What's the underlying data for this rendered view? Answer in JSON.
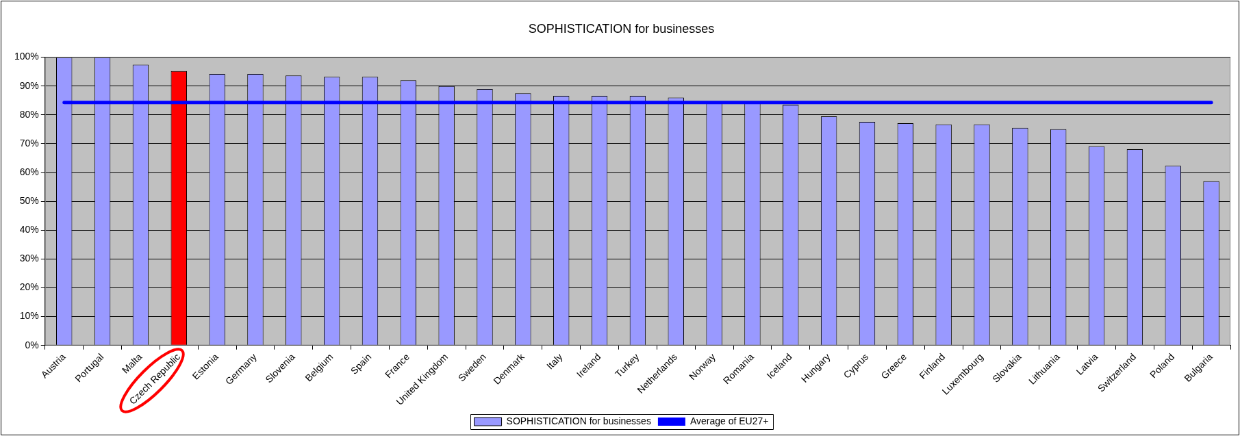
{
  "chart_data": {
    "type": "bar",
    "title": "SOPHISTICATION for businesses",
    "categories": [
      "Austria",
      "Portugal",
      "Malta",
      "Czech Republic",
      "Estonia",
      "Germany",
      "Slovenia",
      "Belgium",
      "Spain",
      "France",
      "United Kingdom",
      "Sweden",
      "Denmark",
      "Italy",
      "Ireland",
      "Turkey",
      "Netherlands",
      "Norway",
      "Romania",
      "Iceland",
      "Hungary",
      "Cyprus",
      "Greece",
      "Finland",
      "Luxembourg",
      "Slovakia",
      "Lithuania",
      "Latvia",
      "Switzerland",
      "Poland",
      "Bulgaria"
    ],
    "series": [
      {
        "name": "SOPHISTICATION for businesses",
        "color": "#9999ff",
        "colors": [
          "#9999ff",
          "#9999ff",
          "#9999ff",
          "#ff0000",
          "#9999ff",
          "#9999ff",
          "#9999ff",
          "#9999ff",
          "#9999ff",
          "#9999ff",
          "#9999ff",
          "#9999ff",
          "#9999ff",
          "#9999ff",
          "#9999ff",
          "#9999ff",
          "#9999ff",
          "#9999ff",
          "#9999ff",
          "#9999ff",
          "#9999ff",
          "#9999ff",
          "#9999ff",
          "#9999ff",
          "#9999ff",
          "#9999ff",
          "#9999ff",
          "#9999ff",
          "#9999ff",
          "#9999ff",
          "#9999ff"
        ],
        "values": [
          100,
          100,
          97.4,
          95.2,
          94.2,
          94.2,
          93.7,
          93.2,
          93.2,
          92,
          90,
          89,
          87.5,
          86.6,
          86.6,
          86.6,
          86,
          84,
          84,
          83.5,
          79.5,
          77.6,
          77.1,
          76.7,
          76.7,
          75.5,
          75,
          69.1,
          68.1,
          62.3,
          57
        ]
      },
      {
        "name": "Average of EU27+",
        "type": "line",
        "color": "#0000ff",
        "values": [
          84.3,
          84.3,
          84.3,
          84.3,
          84.3,
          84.3,
          84.3,
          84.3,
          84.3,
          84.3,
          84.3,
          84.3,
          84.3,
          84.3,
          84.3,
          84.3,
          84.3,
          84.3,
          84.3,
          84.3,
          84.3,
          84.3,
          84.3,
          84.3,
          84.3,
          84.3,
          84.3,
          84.3,
          84.3,
          84.3,
          84.3
        ]
      }
    ],
    "ylim": [
      0,
      100
    ],
    "yticks": [
      {
        "value": 0,
        "label": "0%"
      },
      {
        "value": 10,
        "label": "10%"
      },
      {
        "value": 20,
        "label": "20%"
      },
      {
        "value": 30,
        "label": "30%"
      },
      {
        "value": 40,
        "label": "40%"
      },
      {
        "value": 50,
        "label": "50%"
      },
      {
        "value": 60,
        "label": "60%"
      },
      {
        "value": 70,
        "label": "70%"
      },
      {
        "value": 80,
        "label": "80%"
      },
      {
        "value": 90,
        "label": "90%"
      },
      {
        "value": 100,
        "label": "100%"
      }
    ],
    "grid": "y",
    "legend": "bottom",
    "marker": "none"
  }
}
